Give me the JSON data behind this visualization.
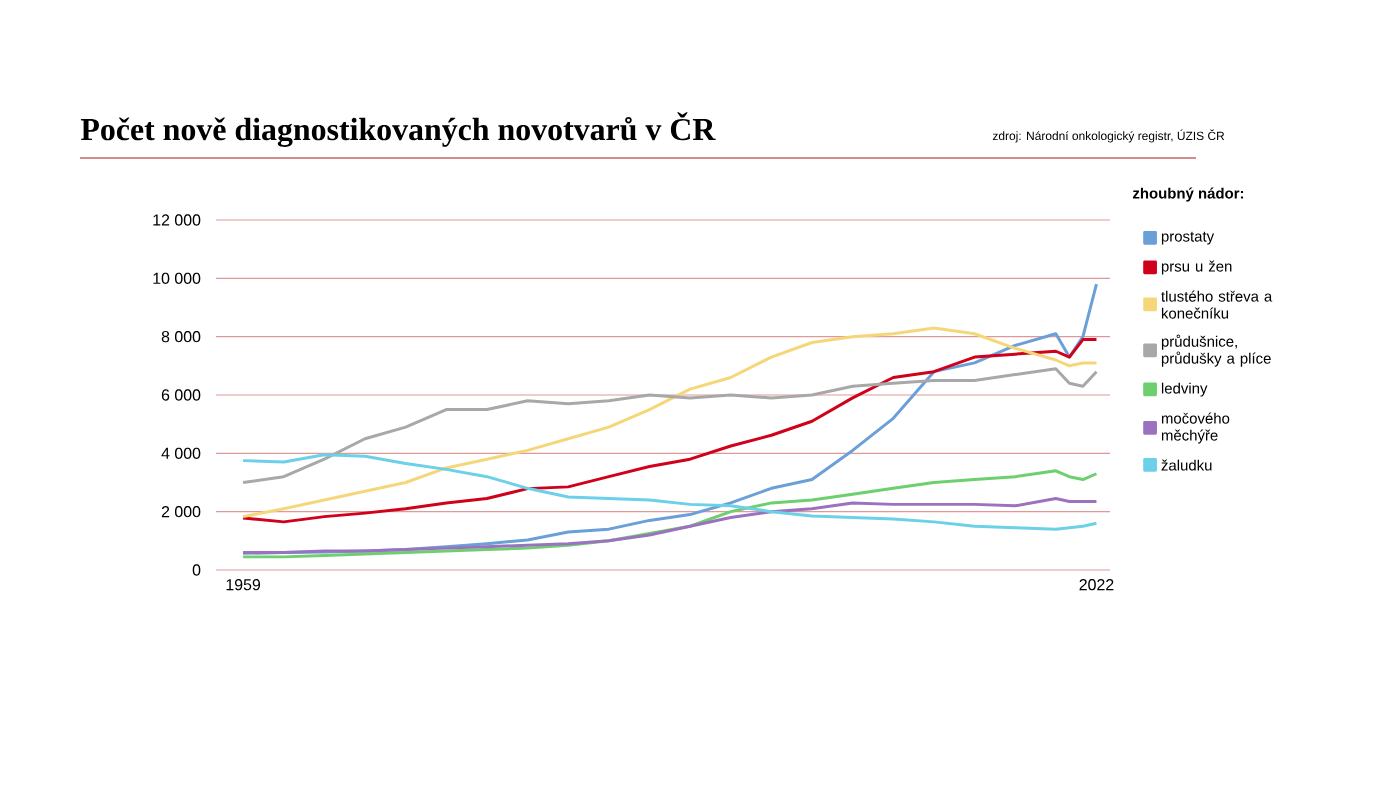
{
  "chart_data": {
    "type": "line",
    "title": "Počet nově diagnostikovaných novotvarů v ČR",
    "annotations": [
      "zdroj: Národní onkologický registr, ÚZIS ČR"
    ],
    "legend_title": "zhoubný nádor:",
    "legend": "right",
    "grid": "y",
    "x": [
      1959,
      1962,
      1965,
      1968,
      1971,
      1974,
      1977,
      1980,
      1983,
      1986,
      1989,
      1992,
      1995,
      1998,
      2001,
      2004,
      2007,
      2010,
      2013,
      2016,
      2019,
      2020,
      2021,
      2022
    ],
    "xlim": [
      1957,
      2023
    ],
    "xticks": [
      1959,
      2022
    ],
    "ylim": [
      0,
      12000
    ],
    "yticks": [
      0,
      {
        "value": 2000,
        "label": "2 000"
      },
      {
        "value": 4000,
        "label": "4 000"
      },
      {
        "value": 6000,
        "label": "6 000"
      },
      {
        "value": 8000,
        "label": "8 000"
      },
      {
        "value": 10000,
        "label": "10 000"
      },
      {
        "value": 12000,
        "label": "12 000"
      }
    ],
    "series": [
      {
        "name": "prostaty",
        "color": "#6a9fd8",
        "values": [
          570,
          600,
          620,
          650,
          700,
          800,
          900,
          1030,
          1300,
          1400,
          1700,
          1900,
          2300,
          2800,
          3100,
          4100,
          5200,
          6800,
          7100,
          7700,
          8100,
          7300,
          8000,
          9800
        ]
      },
      {
        "name": "prsu u žen",
        "color": "#d0021b",
        "values": [
          1780,
          1650,
          1830,
          1950,
          2100,
          2300,
          2450,
          2790,
          2850,
          3200,
          3550,
          3800,
          4250,
          4620,
          5100,
          5900,
          6600,
          6800,
          7300,
          7400,
          7500,
          7300,
          7900,
          7900
        ]
      },
      {
        "name": "tlustého střeva a konečníku",
        "color": "#f5d77a",
        "values": [
          1830,
          2100,
          2400,
          2700,
          3000,
          3500,
          3800,
          4100,
          4500,
          4900,
          5500,
          6200,
          6600,
          7300,
          7800,
          8000,
          8100,
          8300,
          8100,
          7600,
          7200,
          7000,
          7100,
          7100
        ]
      },
      {
        "name": "průdušnice, průdušky a plíce",
        "color": "#a8a8a8",
        "values": [
          3000,
          3200,
          3800,
          4500,
          4900,
          5500,
          5500,
          5800,
          5700,
          5800,
          6000,
          5900,
          6000,
          5900,
          6000,
          6300,
          6400,
          6500,
          6500,
          6700,
          6900,
          6400,
          6300,
          6800
        ]
      },
      {
        "name": "ledviny",
        "color": "#6dcf6d",
        "values": [
          450,
          450,
          500,
          550,
          600,
          650,
          700,
          750,
          850,
          1000,
          1250,
          1500,
          2000,
          2300,
          2400,
          2600,
          2800,
          3000,
          3100,
          3200,
          3400,
          3200,
          3100,
          3300
        ]
      },
      {
        "name": "močového měchýře",
        "color": "#9b72c0",
        "values": [
          600,
          600,
          650,
          650,
          700,
          750,
          800,
          850,
          900,
          1000,
          1200,
          1500,
          1800,
          2000,
          2100,
          2300,
          2250,
          2250,
          2250,
          2200,
          2450,
          2350,
          2350,
          2350
        ]
      },
      {
        "name": "žaludku",
        "color": "#6cd0e8",
        "values": [
          3750,
          3700,
          3950,
          3900,
          3650,
          3450,
          3200,
          2800,
          2500,
          2450,
          2400,
          2250,
          2200,
          2000,
          1850,
          1800,
          1750,
          1650,
          1500,
          1450,
          1400,
          1450,
          1500,
          1600
        ]
      }
    ]
  }
}
